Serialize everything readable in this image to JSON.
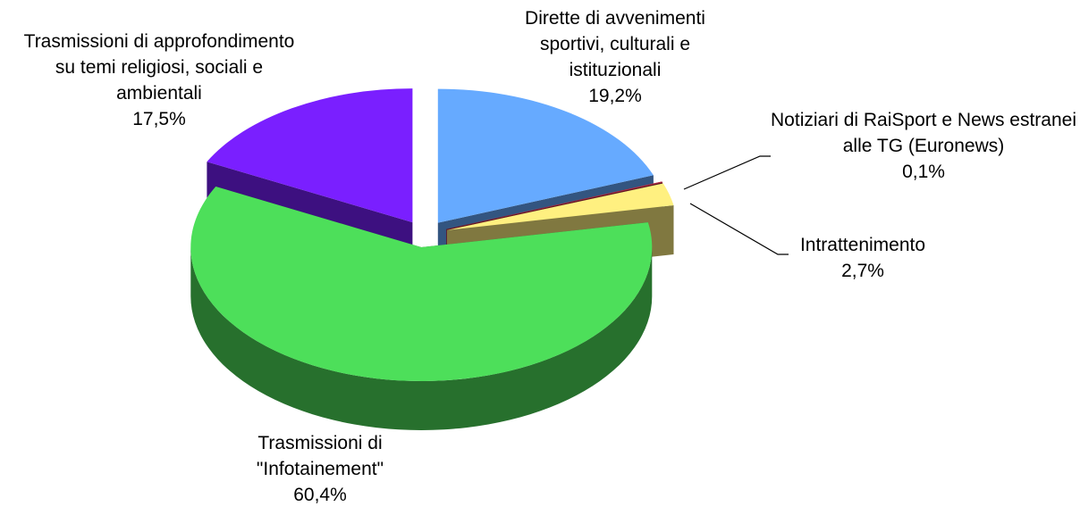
{
  "chart_data": {
    "type": "pie",
    "categories": [
      "Dirette di avvenimenti sportivi, culturali e istituzionali",
      "Notiziari di RaiSport e News estranei alle TG (Euronews)",
      "Intrattenimento",
      "Trasmissioni di \"Infotainement\"",
      "Trasmissioni di approfondimento su temi religiosi, sociali e ambientali"
    ],
    "values": [
      19.2,
      0.1,
      2.7,
      60.4,
      17.5
    ],
    "value_labels": [
      "19,2%",
      "0,1%",
      "2,7%",
      "60,4%",
      "17,5%"
    ],
    "colors": [
      "#66aaff",
      "#c0304a",
      "#fff080",
      "#4ddf5a",
      "#7a1fff"
    ]
  }
}
